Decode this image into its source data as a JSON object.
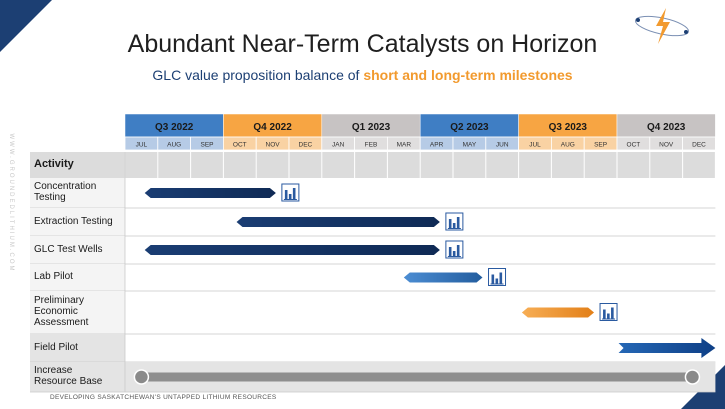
{
  "slide": {
    "title": "Abundant Near-Term Catalysts on Horizon",
    "subtitle_prefix": "GLC value proposition balance of ",
    "subtitle_highlight": "short and long-term milestones",
    "side_text": "WWW.GROUNDEDLITHIUM.COM",
    "footer": "DEVELOPING SASKATCHEWAN'S UNTAPPED LITHIUM RESOURCES",
    "activity_header": "Activity"
  },
  "colors": {
    "brand_blue": "#1c3f73",
    "accent_orange": "#f29a2e",
    "quarter_blue": "#3f7ec4",
    "quarter_orange": "#f7a543",
    "quarter_gray": "#c7c3c3",
    "bar_gray": "#8e8e8e"
  },
  "quarters": [
    {
      "label": "Q3 2022",
      "color": "blue"
    },
    {
      "label": "Q4 2022",
      "color": "orange"
    },
    {
      "label": "Q1 2023",
      "color": "gray"
    },
    {
      "label": "Q2 2023",
      "color": "blue"
    },
    {
      "label": "Q3 2023",
      "color": "orange"
    },
    {
      "label": "Q4 2023",
      "color": "gray"
    }
  ],
  "months": [
    "JUL",
    "AUG",
    "SEP",
    "OCT",
    "NOV",
    "DEC",
    "JAN",
    "FEB",
    "MAR",
    "APR",
    "MAY",
    "JUN",
    "JUL",
    "AUG",
    "SEP",
    "OCT",
    "NOV",
    "DEC"
  ],
  "activities": [
    {
      "label": "Concentration Testing",
      "lines": [
        "Concentration",
        "Testing"
      ],
      "start": 0.6,
      "end": 4.6,
      "style": "navy",
      "report_icon": true
    },
    {
      "label": "Extraction Testing",
      "lines": [
        "Extraction Testing"
      ],
      "start": 3.4,
      "end": 9.6,
      "style": "navy",
      "report_icon": true
    },
    {
      "label": "GLC Test Wells",
      "lines": [
        "GLC Test Wells"
      ],
      "start": 0.6,
      "end": 9.6,
      "style": "navy",
      "report_icon": true
    },
    {
      "label": "Lab Pilot",
      "lines": [
        "Lab Pilot"
      ],
      "start": 8.5,
      "end": 10.9,
      "style": "blue",
      "report_icon": true
    },
    {
      "label": "Preliminary Economic Assessment",
      "lines": [
        "Preliminary",
        "Economic",
        "Assessment"
      ],
      "start": 12.1,
      "end": 14.3,
      "style": "orange",
      "report_icon": true
    },
    {
      "label": "Field Pilot",
      "lines": [
        "Field Pilot"
      ],
      "start": 15.2,
      "end": 18.0,
      "style": "arrow",
      "report_icon": false
    },
    {
      "label": "Increase Resource Base",
      "lines": [
        "Increase",
        "Resource Base"
      ],
      "start": 0.5,
      "end": 17.3,
      "style": "gray",
      "report_icon": false
    }
  ]
}
